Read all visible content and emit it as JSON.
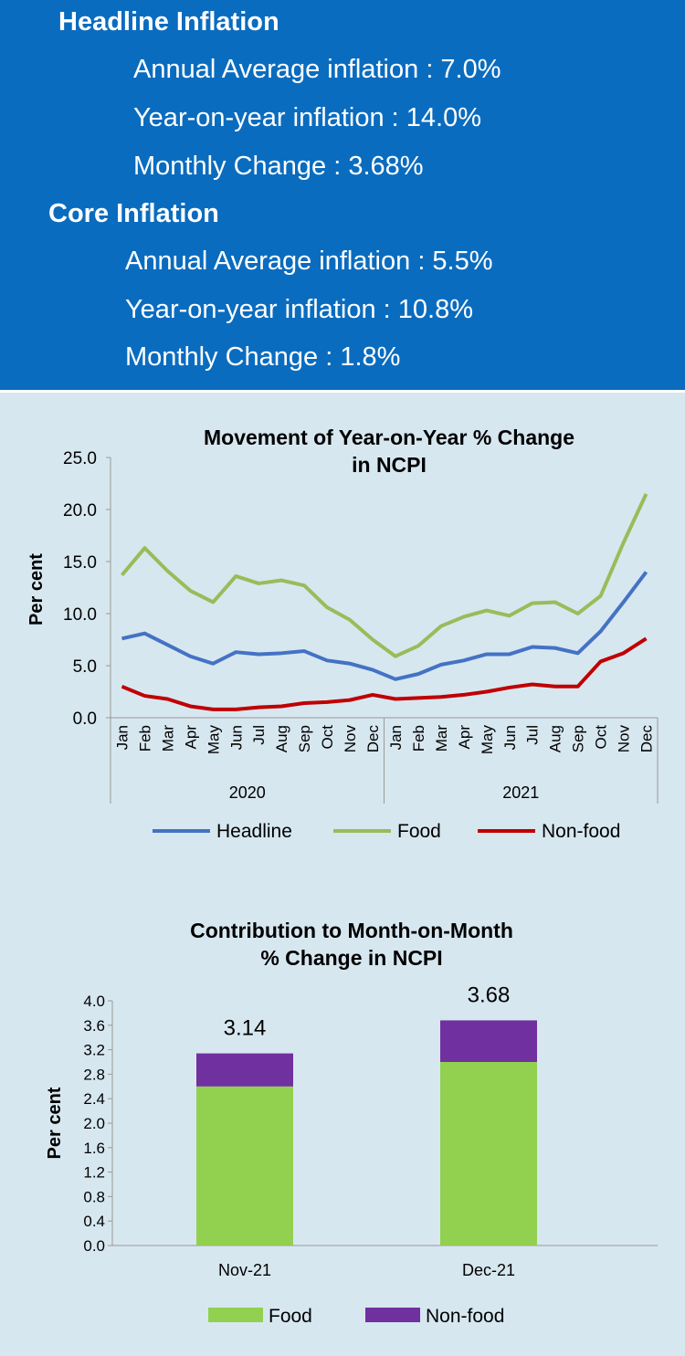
{
  "headline": {
    "title": "Headline Inflation",
    "annual_average": "Annual Average inflation :  7.0%",
    "year_on_year": "Year-on-year inflation : 14.0%",
    "monthly_change": "Monthly Change :  3.68%"
  },
  "core": {
    "title": "Core Inflation",
    "annual_average": "Annual Average inflation :  5.5%",
    "year_on_year": "Year-on-year inflation :  10.8%",
    "monthly_change": "Monthly Change :  1.8%"
  },
  "chart_data": [
    {
      "type": "line",
      "title": "Movement of Year-on-Year % Change in NCPI",
      "ylabel": "Per cent",
      "ylim": [
        0,
        25
      ],
      "yticks": [
        "0.0",
        "5.0",
        "10.0",
        "15.0",
        "20.0",
        "25.0"
      ],
      "months": [
        "Jan",
        "Feb",
        "Mar",
        "Apr",
        "May",
        "Jun",
        "Jul",
        "Aug",
        "Sep",
        "Oct",
        "Nov",
        "Dec"
      ],
      "years": [
        "2020",
        "2021"
      ],
      "grid": false,
      "legend": "bottom",
      "series": [
        {
          "name": "Headline",
          "color": "#4472c4",
          "values": [
            7.6,
            8.1,
            7.0,
            5.9,
            5.2,
            6.3,
            6.1,
            6.2,
            6.4,
            5.5,
            5.2,
            4.6,
            3.7,
            4.2,
            5.1,
            5.5,
            6.1,
            6.1,
            6.8,
            6.7,
            6.2,
            8.3,
            11.1,
            14.0
          ]
        },
        {
          "name": "Food",
          "color": "#9bbb59",
          "values": [
            13.7,
            16.3,
            14.1,
            12.2,
            11.1,
            13.6,
            12.9,
            13.2,
            12.7,
            10.6,
            9.4,
            7.5,
            5.9,
            6.9,
            8.8,
            9.7,
            10.3,
            9.8,
            11.0,
            11.1,
            10.0,
            11.7,
            16.8,
            21.5
          ]
        },
        {
          "name": "Non-food",
          "color": "#c00000",
          "values": [
            3.0,
            2.1,
            1.8,
            1.1,
            0.8,
            0.8,
            1.0,
            1.1,
            1.4,
            1.5,
            1.7,
            2.2,
            1.8,
            1.9,
            2.0,
            2.2,
            2.5,
            2.9,
            3.2,
            3.0,
            3.0,
            5.4,
            6.2,
            7.6
          ]
        }
      ]
    },
    {
      "type": "bar",
      "stacked": true,
      "title": "Contribution to Month-on-Month % Change in NCPI",
      "ylabel": "Per cent",
      "ylim": [
        0,
        4.0
      ],
      "yticks": [
        "0.0",
        "0.4",
        "0.8",
        "1.2",
        "1.6",
        "2.0",
        "2.4",
        "2.8",
        "3.2",
        "3.6",
        "4.0"
      ],
      "categories": [
        "Nov-21",
        "Dec-21"
      ],
      "totals": [
        "3.14",
        "3.68"
      ],
      "legend": "bottom",
      "series": [
        {
          "name": "Food",
          "color": "#92d050",
          "values": [
            2.6,
            3.0
          ]
        },
        {
          "name": "Non-food",
          "color": "#7030a0",
          "values": [
            0.54,
            0.68
          ]
        }
      ]
    }
  ]
}
